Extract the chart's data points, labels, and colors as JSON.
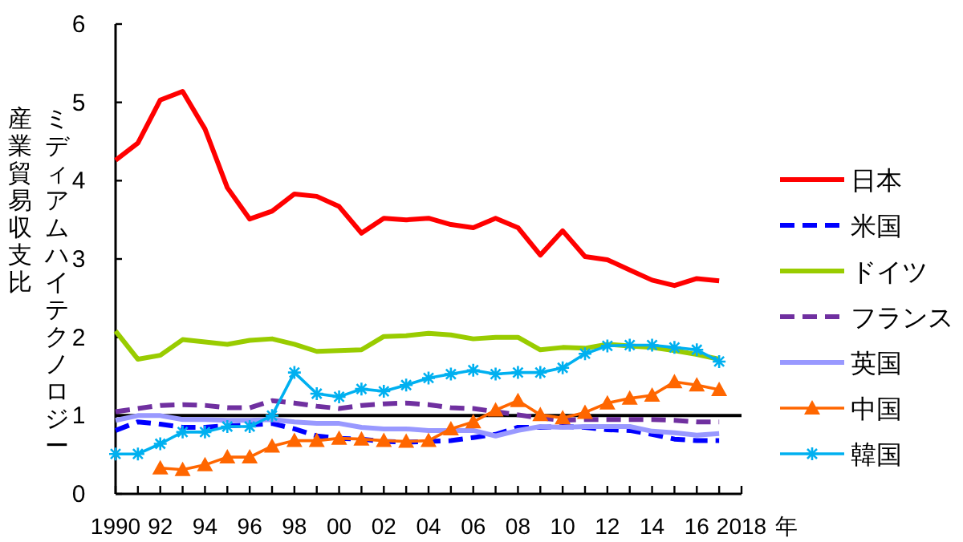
{
  "chart_data": {
    "type": "line",
    "xlabel": "年",
    "ylabel": "ミディアムハイテクノロジー産業貿易収支比",
    "x": [
      1990,
      1991,
      1992,
      1993,
      1994,
      1995,
      1996,
      1997,
      1998,
      1999,
      2000,
      2001,
      2002,
      2003,
      2004,
      2005,
      2006,
      2007,
      2008,
      2009,
      2010,
      2011,
      2012,
      2013,
      2014,
      2015,
      2016,
      2017
    ],
    "xlim": [
      1990,
      2018
    ],
    "xticks": [
      {
        "value": 1990,
        "label": "1990"
      },
      {
        "value": 1991,
        "label": null
      },
      {
        "value": 1992,
        "label": "92"
      },
      {
        "value": 1993,
        "label": null
      },
      {
        "value": 1994,
        "label": "94"
      },
      {
        "value": 1995,
        "label": null
      },
      {
        "value": 1996,
        "label": "96"
      },
      {
        "value": 1997,
        "label": null
      },
      {
        "value": 1998,
        "label": "98"
      },
      {
        "value": 1999,
        "label": null
      },
      {
        "value": 2000,
        "label": "00"
      },
      {
        "value": 2001,
        "label": null
      },
      {
        "value": 2002,
        "label": "02"
      },
      {
        "value": 2003,
        "label": null
      },
      {
        "value": 2004,
        "label": "04"
      },
      {
        "value": 2005,
        "label": null
      },
      {
        "value": 2006,
        "label": "06"
      },
      {
        "value": 2007,
        "label": null
      },
      {
        "value": 2008,
        "label": "08"
      },
      {
        "value": 2009,
        "label": null
      },
      {
        "value": 2010,
        "label": "10"
      },
      {
        "value": 2011,
        "label": null
      },
      {
        "value": 2012,
        "label": "12"
      },
      {
        "value": 2013,
        "label": null
      },
      {
        "value": 2014,
        "label": "14"
      },
      {
        "value": 2015,
        "label": null
      },
      {
        "value": 2016,
        "label": "16"
      },
      {
        "value": 2017,
        "label": null
      },
      {
        "value": 2018,
        "label": "2018"
      }
    ],
    "ylim": [
      0,
      6
    ],
    "yticks": [
      0,
      1,
      2,
      3,
      4,
      5,
      6
    ],
    "grid": false,
    "legend": "right",
    "ref_lines": [
      {
        "axis": "y",
        "value": 1,
        "color": "#000000"
      }
    ],
    "series": [
      {
        "name": "日本",
        "color": "#ff0000",
        "line_style": "solid",
        "values": [
          4.26,
          4.48,
          5.03,
          5.14,
          4.66,
          3.91,
          3.51,
          3.61,
          3.83,
          3.8,
          3.67,
          3.33,
          3.52,
          3.5,
          3.52,
          3.44,
          3.4,
          3.52,
          3.4,
          3.05,
          3.36,
          3.03,
          2.99,
          2.86,
          2.73,
          2.66,
          2.75,
          2.72
        ]
      },
      {
        "name": "米国",
        "color": "#0000ff",
        "line_style": "dashed",
        "values": [
          0.81,
          0.92,
          0.89,
          0.85,
          0.85,
          0.87,
          0.88,
          0.9,
          0.83,
          0.74,
          0.71,
          0.7,
          0.67,
          0.66,
          0.67,
          0.68,
          0.72,
          0.76,
          0.85,
          0.85,
          0.86,
          0.85,
          0.82,
          0.81,
          0.76,
          0.7,
          0.68,
          0.68
        ]
      },
      {
        "name": "ドイツ",
        "color": "#99cc00",
        "line_style": "solid",
        "values": [
          2.08,
          1.72,
          1.77,
          1.97,
          1.94,
          1.91,
          1.96,
          1.98,
          1.91,
          1.82,
          1.83,
          1.84,
          2.01,
          2.02,
          2.05,
          2.03,
          1.98,
          2.0,
          2.0,
          1.84,
          1.87,
          1.86,
          1.91,
          1.89,
          1.87,
          1.83,
          1.78,
          1.72
        ]
      },
      {
        "name": "フランス",
        "color": "#7030a0",
        "line_style": "dashed",
        "values": [
          1.05,
          1.09,
          1.13,
          1.14,
          1.13,
          1.1,
          1.1,
          1.19,
          1.16,
          1.12,
          1.09,
          1.13,
          1.15,
          1.16,
          1.14,
          1.1,
          1.09,
          1.05,
          1.01,
          0.97,
          0.94,
          0.95,
          0.95,
          0.95,
          0.95,
          0.94,
          0.92,
          0.92
        ]
      },
      {
        "name": "英国",
        "color": "#9999ff",
        "line_style": "solid",
        "values": [
          0.94,
          1.0,
          1.0,
          0.95,
          0.95,
          0.94,
          0.94,
          0.95,
          0.92,
          0.9,
          0.9,
          0.85,
          0.83,
          0.83,
          0.81,
          0.81,
          0.81,
          0.74,
          0.81,
          0.86,
          0.85,
          0.86,
          0.86,
          0.86,
          0.8,
          0.78,
          0.75,
          0.77
        ]
      },
      {
        "name": "中国",
        "color": "#ff6600",
        "line_style": "solid",
        "marker": "triangle",
        "values": [
          null,
          null,
          0.33,
          0.31,
          0.37,
          0.47,
          0.47,
          0.61,
          0.68,
          0.68,
          0.71,
          0.7,
          0.68,
          0.67,
          0.68,
          0.83,
          0.92,
          1.07,
          1.19,
          1.01,
          0.97,
          1.04,
          1.16,
          1.22,
          1.26,
          1.43,
          1.39,
          1.33
        ]
      },
      {
        "name": "韓国",
        "color": "#00b0f0",
        "line_style": "solid",
        "marker": "cross",
        "values": [
          0.51,
          0.51,
          0.64,
          0.79,
          0.79,
          0.86,
          0.86,
          1.0,
          1.55,
          1.28,
          1.24,
          1.34,
          1.31,
          1.39,
          1.48,
          1.53,
          1.58,
          1.53,
          1.55,
          1.55,
          1.61,
          1.79,
          1.89,
          1.9,
          1.9,
          1.87,
          1.84,
          1.69
        ]
      }
    ]
  }
}
